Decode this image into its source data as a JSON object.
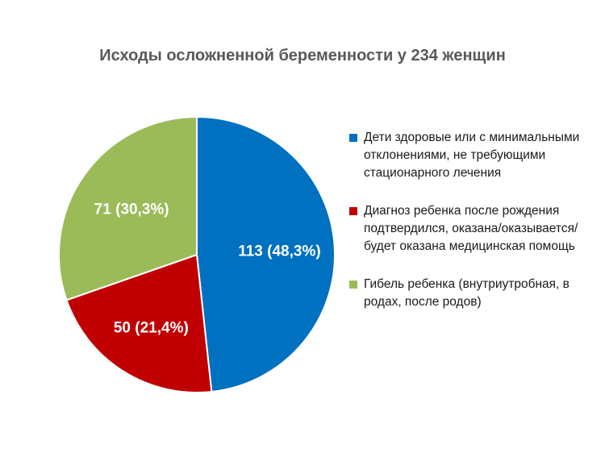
{
  "chart_data": {
    "type": "pie",
    "title": "Исходы осложненной беременности у 234 женщин",
    "slices": [
      {
        "name": "Дети здоровые или с минимальными отклонениями, не требующими стационарного лечения",
        "value": 113,
        "label": "113 (48,3%)",
        "color": "#0070C0"
      },
      {
        "name": "Диагноз ребенка после рождения подтвердился, оказана/оказывается/ будет оказана медицинская помощь",
        "value": 50,
        "label": "50 (21,4%)",
        "color": "#C00000"
      },
      {
        "name": "Гибель ребенка (внутриутробная, в родах, после родов)",
        "value": 71,
        "label": "71 (30,3%)",
        "color": "#9BBB59"
      }
    ],
    "legend_position": "right"
  }
}
